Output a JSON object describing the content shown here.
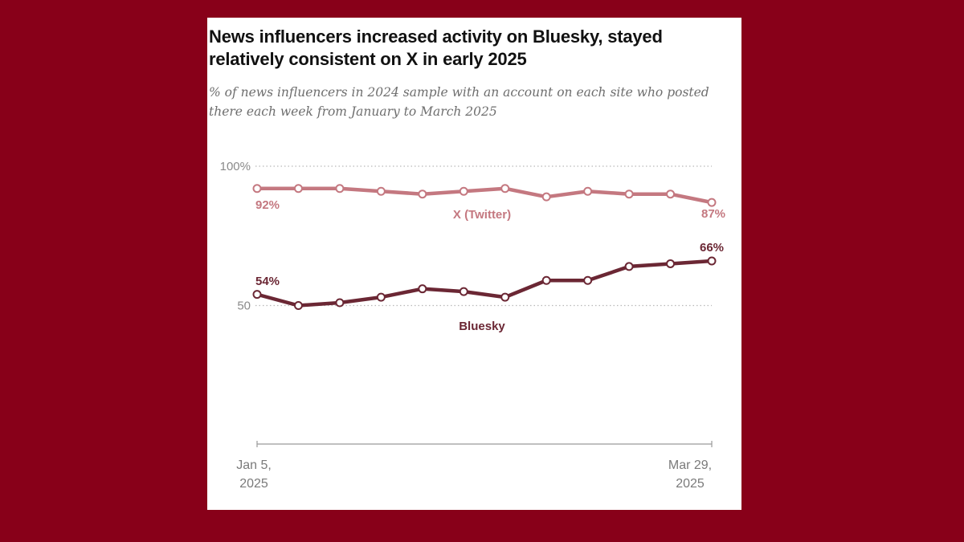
{
  "chart_data": {
    "type": "line",
    "title": "News influencers increased activity on Bluesky, stayed relatively consistent on X in early 2025",
    "subtitle": "% of news influencers in 2024 sample with an account on each site who posted there each week from January to March 2025",
    "y_ticks": [
      "100%",
      "50"
    ],
    "ylim": [
      0,
      100
    ],
    "grid": true,
    "x_tick_labels": {
      "start": [
        "Jan 5,",
        "2025"
      ],
      "end": [
        "Mar 29,",
        "2025"
      ]
    },
    "series": [
      {
        "name": "X (Twitter)",
        "color": "#c47880",
        "values": [
          92,
          92,
          92,
          91,
          90,
          91,
          92,
          89,
          91,
          90,
          90,
          87
        ],
        "start_label": "92%",
        "end_label": "87%"
      },
      {
        "name": "Bluesky",
        "color": "#6b2734",
        "values": [
          54,
          50,
          51,
          53,
          56,
          55,
          53,
          59,
          59,
          64,
          65,
          66
        ],
        "start_label": "54%",
        "end_label": "66%"
      }
    ]
  }
}
